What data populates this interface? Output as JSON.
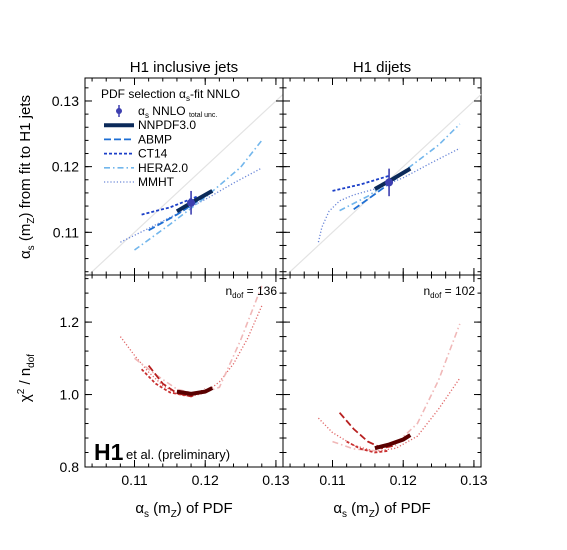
{
  "chart_data": [
    {
      "type": "line",
      "panel": "top-left",
      "title": "H1 inclusive jets",
      "ylabel": "αs (mZ) from fit to H1 jets",
      "xlim": [
        0.103,
        0.131
      ],
      "ylim": [
        0.1035,
        0.1335
      ],
      "xticks": [
        "0.11",
        "0.12",
        "0.13"
      ],
      "yticks": [
        "0.11",
        "0.12",
        "0.13"
      ],
      "legend": {
        "title": "PDF selection αs-fit NNLO",
        "position": "top-left",
        "entries": [
          {
            "label": "αs NNLO",
            "sublabel": "total unc.",
            "style": "point",
            "color": "#3d3fb0"
          },
          {
            "label": "NNPDF3.0",
            "style": "thick-solid",
            "color": "#0b2a5a"
          },
          {
            "label": "ABMP",
            "style": "long-dash",
            "color": "#1e6fd4"
          },
          {
            "label": "CT14",
            "style": "short-dash",
            "color": "#1b3fc8"
          },
          {
            "label": "HERA2.0",
            "style": "dash-dot",
            "color": "#72b6ec"
          },
          {
            "label": "MMHT",
            "style": "dotted",
            "color": "#6a86d8"
          }
        ]
      },
      "diagonal": {
        "x": [
          0.103,
          0.131
        ],
        "y": [
          0.103,
          0.131
        ],
        "color": "#e3e3e3"
      },
      "point": {
        "x": 0.118,
        "y": 0.1145,
        "yerr": [
          0.1127,
          0.1163
        ],
        "color": "#3d3fb0"
      },
      "series": [
        {
          "name": "MMHT",
          "x": [
            0.108,
            0.112,
            0.116,
            0.12,
            0.124,
            0.128
          ],
          "y": [
            0.1085,
            0.1106,
            0.1128,
            0.115,
            0.1175,
            0.1198
          ],
          "color": "#6a86d8",
          "style": "dotted"
        },
        {
          "name": "HERA2.0",
          "x": [
            0.11,
            0.115,
            0.12,
            0.125,
            0.128
          ],
          "y": [
            0.1073,
            0.1112,
            0.1153,
            0.1199,
            0.124
          ],
          "color": "#72b6ec",
          "style": "dash-dot"
        },
        {
          "name": "ABMP",
          "x": [
            0.112,
            0.116,
            0.12
          ],
          "y": [
            0.1103,
            0.1127,
            0.1155
          ],
          "color": "#1e6fd4",
          "style": "long-dash"
        },
        {
          "name": "CT14",
          "x": [
            0.111,
            0.115,
            0.119
          ],
          "y": [
            0.1127,
            0.1138,
            0.1155
          ],
          "color": "#1b3fc8",
          "style": "short-dash"
        },
        {
          "name": "NNPDF3.0",
          "x": [
            0.116,
            0.1185,
            0.121
          ],
          "y": [
            0.1132,
            0.1148,
            0.1163
          ],
          "color": "#0b2a5a",
          "style": "thick-solid"
        }
      ]
    },
    {
      "type": "line",
      "panel": "top-right",
      "title": "H1 dijets",
      "xlim": [
        0.103,
        0.131
      ],
      "ylim": [
        0.1035,
        0.1335
      ],
      "diagonal": {
        "x": [
          0.103,
          0.131
        ],
        "y": [
          0.103,
          0.131
        ],
        "color": "#e3e3e3"
      },
      "point": {
        "x": 0.118,
        "y": 0.1176,
        "yerr": [
          0.1155,
          0.1197
        ],
        "color": "#3d3fb0"
      },
      "series": [
        {
          "name": "MMHT",
          "x": [
            0.108,
            0.1085,
            0.1095,
            0.111,
            0.113,
            0.116,
            0.12,
            0.124,
            0.128
          ],
          "y": [
            0.1085,
            0.1108,
            0.1132,
            0.1148,
            0.1157,
            0.1166,
            0.1183,
            0.1206,
            0.1228
          ],
          "color": "#6a86d8",
          "style": "dotted"
        },
        {
          "name": "HERA2.0",
          "x": [
            0.111,
            0.115,
            0.12,
            0.125,
            0.128
          ],
          "y": [
            0.1133,
            0.1155,
            0.1192,
            0.1233,
            0.1265
          ],
          "color": "#72b6ec",
          "style": "dash-dot"
        },
        {
          "name": "ABMP",
          "x": [
            0.113,
            0.116,
            0.119
          ],
          "y": [
            0.1135,
            0.1158,
            0.1182
          ],
          "color": "#1e6fd4",
          "style": "long-dash"
        },
        {
          "name": "CT14",
          "x": [
            0.11,
            0.114,
            0.118
          ],
          "y": [
            0.1163,
            0.1173,
            0.1186
          ],
          "color": "#1b3fc8",
          "style": "short-dash"
        },
        {
          "name": "NNPDF3.0",
          "x": [
            0.116,
            0.1185,
            0.121
          ],
          "y": [
            0.1166,
            0.1181,
            0.1197
          ],
          "color": "#0b2a5a",
          "style": "thick-solid"
        }
      ]
    },
    {
      "type": "line",
      "panel": "bottom-left",
      "xlabel": "αs (mZ) of PDF",
      "ylabel": "χ² / ndof",
      "xlim": [
        0.103,
        0.131
      ],
      "ylim": [
        0.8,
        1.33
      ],
      "xticks": [
        "0.11",
        "0.12",
        "0.13"
      ],
      "yticks": [
        "0.8",
        "1.0",
        "1.2"
      ],
      "annotation": "ndof = 136",
      "series": [
        {
          "name": "MMHT",
          "x": [
            0.108,
            0.11,
            0.112,
            0.114,
            0.116,
            0.118,
            0.12,
            0.122,
            0.124,
            0.126,
            0.128
          ],
          "y": [
            1.16,
            1.108,
            1.062,
            1.025,
            1.002,
            0.995,
            1.005,
            1.035,
            1.085,
            1.155,
            1.245
          ],
          "color": "#e06666",
          "style": "dotted"
        },
        {
          "name": "HERA2.0",
          "x": [
            0.11,
            0.113,
            0.116,
            0.119,
            0.122,
            0.125,
            0.128
          ],
          "y": [
            1.1,
            1.055,
            1.015,
            1.0,
            1.02,
            1.15,
            1.3
          ],
          "color": "#f0b8b8",
          "style": "dash-dot"
        },
        {
          "name": "ABMP",
          "x": [
            0.112,
            0.114,
            0.116,
            0.118,
            0.12
          ],
          "y": [
            1.08,
            1.03,
            1.004,
            0.995,
            1.015
          ],
          "color": "#b82020",
          "style": "long-dash"
        },
        {
          "name": "CT14",
          "x": [
            0.111,
            0.113,
            0.115,
            0.117,
            0.119
          ],
          "y": [
            1.07,
            1.03,
            1.006,
            0.998,
            1.005
          ],
          "color": "#c83030",
          "style": "short-dash"
        },
        {
          "name": "NNPDF3.0",
          "x": [
            0.116,
            0.118,
            0.12,
            0.121
          ],
          "y": [
            1.008,
            1.002,
            1.008,
            1.018
          ],
          "color": "#5a0000",
          "style": "thick-solid"
        }
      ]
    },
    {
      "type": "line",
      "panel": "bottom-right",
      "xlabel": "αs (mZ) of PDF",
      "xlim": [
        0.103,
        0.131
      ],
      "ylim": [
        0.8,
        1.33
      ],
      "xticks": [
        "0.11",
        "0.12",
        "0.13"
      ],
      "annotation": "ndof = 102",
      "series": [
        {
          "name": "MMHT",
          "x": [
            0.108,
            0.11,
            0.113,
            0.116,
            0.119,
            0.122,
            0.125,
            0.128
          ],
          "y": [
            0.935,
            0.895,
            0.86,
            0.843,
            0.852,
            0.885,
            0.96,
            1.045
          ],
          "color": "#e06666",
          "style": "dotted"
        },
        {
          "name": "HERA2.0",
          "x": [
            0.11,
            0.113,
            0.116,
            0.119,
            0.122,
            0.125,
            0.128
          ],
          "y": [
            0.87,
            0.85,
            0.845,
            0.865,
            0.92,
            1.04,
            1.195
          ],
          "color": "#f0b8b8",
          "style": "dash-dot"
        },
        {
          "name": "ABMP",
          "x": [
            0.111,
            0.113,
            0.115,
            0.117,
            0.119
          ],
          "y": [
            0.95,
            0.905,
            0.87,
            0.852,
            0.86
          ],
          "color": "#b82020",
          "style": "long-dash"
        },
        {
          "name": "CT14",
          "x": [
            0.112,
            0.114,
            0.116,
            0.118
          ],
          "y": [
            0.87,
            0.85,
            0.84,
            0.845
          ],
          "color": "#c83030",
          "style": "short-dash"
        },
        {
          "name": "NNPDF3.0",
          "x": [
            0.116,
            0.118,
            0.12,
            0.121
          ],
          "y": [
            0.852,
            0.862,
            0.876,
            0.888
          ],
          "color": "#5a0000",
          "style": "thick-solid"
        }
      ]
    }
  ],
  "footer": {
    "logo": "H1",
    "caption": "et al. (preliminary)"
  },
  "colors": {
    "point": "#3d3fb0",
    "blue_family": [
      "#0b2a5a",
      "#1e6fd4",
      "#1b3fc8",
      "#72b6ec",
      "#6a86d8"
    ],
    "red_family": [
      "#5a0000",
      "#b82020",
      "#c83030",
      "#f0b8b8",
      "#e06666"
    ]
  }
}
